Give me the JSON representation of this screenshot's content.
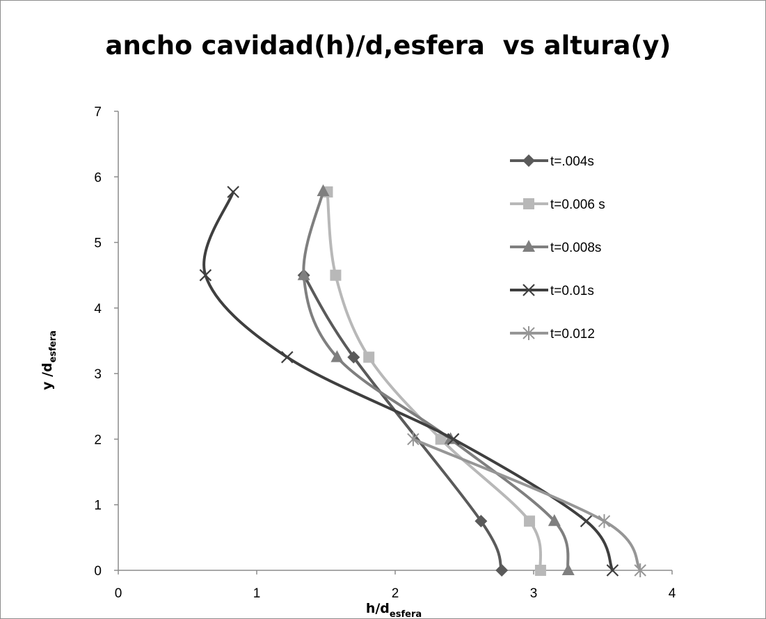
{
  "chart_data": {
    "type": "scatter",
    "title": "ancho cavidad(h)/d,esfera  vs altura(y)",
    "xlabel": {
      "main": "h/d",
      "sub": "esfera"
    },
    "ylabel": {
      "main": "y /d",
      "sub": "esfera"
    },
    "xlim": [
      0,
      4
    ],
    "ylim": [
      0,
      7
    ],
    "xticks": [
      0,
      1,
      2,
      3,
      4
    ],
    "yticks": [
      0,
      1,
      2,
      3,
      4,
      5,
      6,
      7
    ],
    "grid": false,
    "legend_position": "right",
    "smooth_lines": true,
    "series": [
      {
        "name": "t=.004s",
        "marker": "diamond",
        "color": "#5a5a5a",
        "points": [
          [
            2.77,
            0
          ],
          [
            2.62,
            0.75
          ],
          [
            1.7,
            3.25
          ],
          [
            1.34,
            4.5
          ]
        ]
      },
      {
        "name": "t=0.006 s",
        "marker": "square",
        "color": "#b8b8b8",
        "points": [
          [
            3.05,
            0
          ],
          [
            2.97,
            0.75
          ],
          [
            2.33,
            2.0
          ],
          [
            1.81,
            3.25
          ],
          [
            1.57,
            4.5
          ],
          [
            1.51,
            5.77
          ]
        ]
      },
      {
        "name": "t=0.008s",
        "marker": "triangle",
        "color": "#7f7f7f",
        "points": [
          [
            3.25,
            0
          ],
          [
            3.15,
            0.75
          ],
          [
            2.4,
            2.0
          ],
          [
            1.58,
            3.25
          ],
          [
            1.34,
            4.5
          ],
          [
            1.48,
            5.78
          ]
        ]
      },
      {
        "name": "t=0.01s",
        "marker": "x",
        "color": "#3f3f3f",
        "points": [
          [
            3.57,
            0
          ],
          [
            3.38,
            0.75
          ],
          [
            2.42,
            2.0
          ],
          [
            1.22,
            3.25
          ],
          [
            0.63,
            4.5
          ],
          [
            0.83,
            5.77
          ]
        ]
      },
      {
        "name": "t=0.012",
        "marker": "star",
        "color": "#969696",
        "points": [
          [
            3.77,
            0
          ],
          [
            3.51,
            0.75
          ],
          [
            2.13,
            2.0
          ]
        ]
      }
    ]
  }
}
